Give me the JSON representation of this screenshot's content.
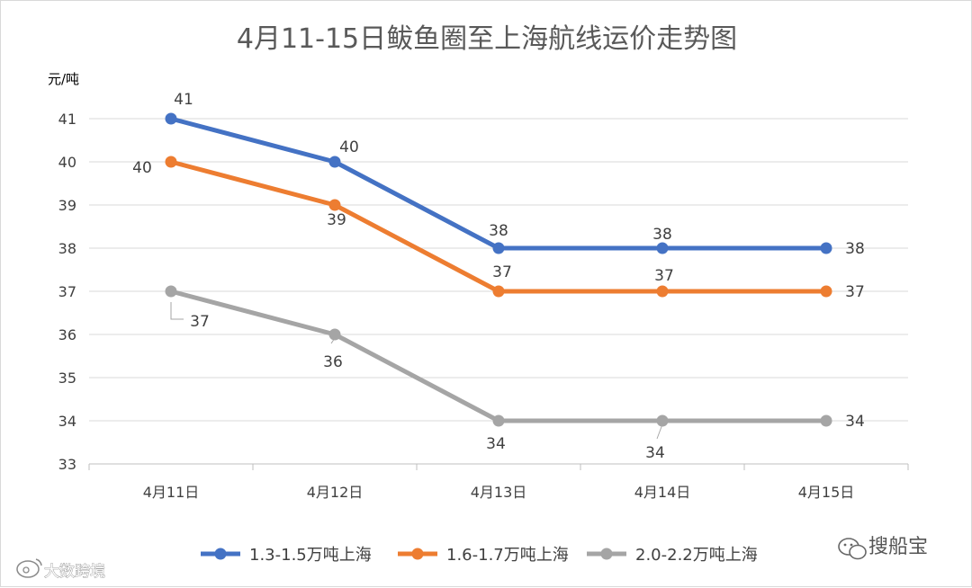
{
  "chart_data": {
    "type": "line",
    "title": "4月11-15日鲅鱼圈至上海航线运价走势图",
    "ylabel": "元/吨",
    "xlabel": "",
    "categories": [
      "4月11日",
      "4月12日",
      "4月13日",
      "4月14日",
      "4月15日"
    ],
    "ylim": [
      33,
      41
    ],
    "yticks": [
      33,
      34,
      35,
      36,
      37,
      38,
      39,
      40,
      41
    ],
    "grid": true,
    "legend_position": "bottom",
    "series": [
      {
        "name": "1.3-1.5万吨上海",
        "values": [
          41,
          40,
          38,
          38,
          38
        ],
        "color": "#4472C4"
      },
      {
        "name": "1.6-1.7万吨上海",
        "values": [
          40,
          39,
          37,
          37,
          37
        ],
        "color": "#ED7D31"
      },
      {
        "name": "2.0-2.2万吨上海",
        "values": [
          37,
          36,
          34,
          34,
          34
        ],
        "color": "#A5A5A5"
      }
    ]
  },
  "watermarks": {
    "right": "搜船宝",
    "left": "大数跨境",
    "right_icon": "wechat-icon",
    "left_icon": "weibo-icon"
  }
}
